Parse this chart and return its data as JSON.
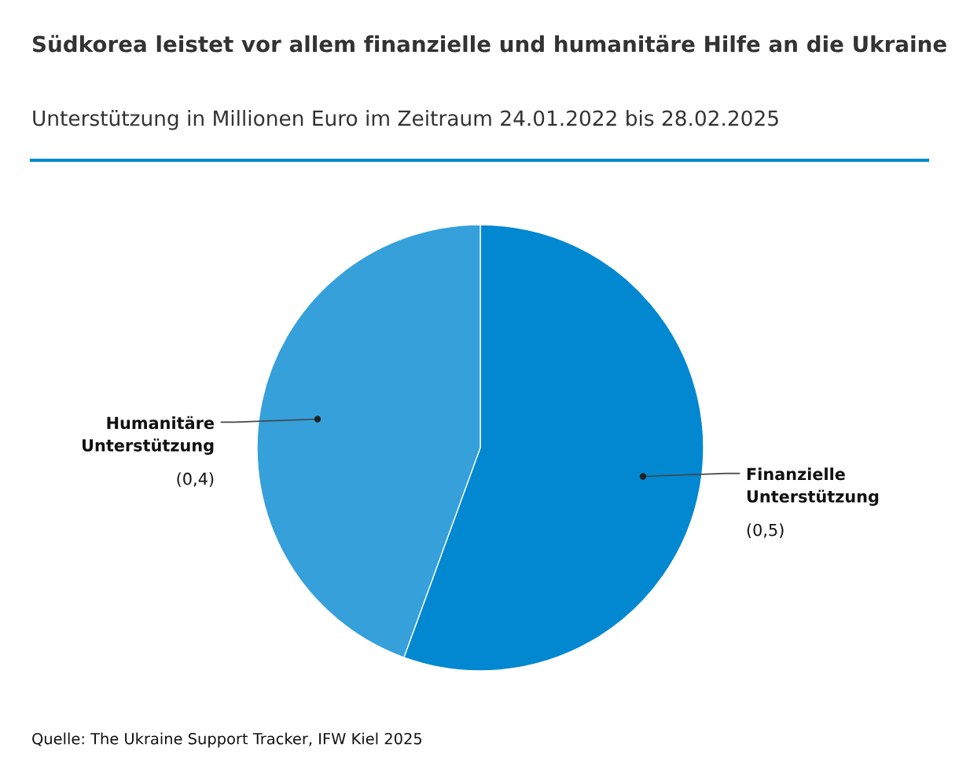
{
  "chart_data": {
    "type": "pie",
    "title": "Südkorea leistet vor allem finanzielle und humanitäre Hilfe an die Ukraine",
    "subtitle": "Unterstützung in Millionen Euro im Zeitraum 24.01.2022 bis 28.02.2025",
    "categories": [
      "Finanzielle Unterstützung",
      "Humanitäre Unterstützung"
    ],
    "values": [
      0.5,
      0.4
    ],
    "value_labels": [
      "(0,5)",
      "(0,4)"
    ],
    "colors": [
      "#0288d1",
      "#35a0da"
    ],
    "annotations": [
      "Quelle: The Ukraine Support Tracker, IFW Kiel 2025"
    ]
  }
}
